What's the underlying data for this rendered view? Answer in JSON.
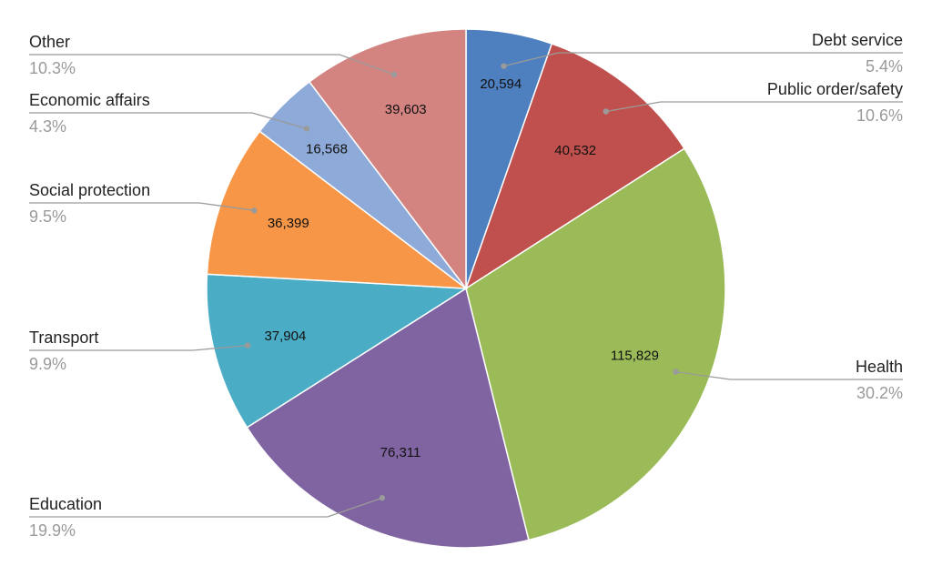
{
  "chart_data": {
    "type": "pie",
    "title": "",
    "legend": "none",
    "slices": [
      {
        "label": "Debt service",
        "value": 20594,
        "value_label": "20,594",
        "percent_label": "5.4%",
        "color": "#4e7fbf"
      },
      {
        "label": "Public order/safety",
        "value": 40532,
        "value_label": "40,532",
        "percent_label": "10.6%",
        "color": "#c0504d"
      },
      {
        "label": "Health",
        "value": 115829,
        "value_label": "115,829",
        "percent_label": "30.2%",
        "color": "#9bbb59"
      },
      {
        "label": "Education",
        "value": 76311,
        "value_label": "76,311",
        "percent_label": "19.9%",
        "color": "#8064a2"
      },
      {
        "label": "Transport",
        "value": 37904,
        "value_label": "37,904",
        "percent_label": "9.9%",
        "color": "#4bacc6"
      },
      {
        "label": "Social protection",
        "value": 36399,
        "value_label": "36,399",
        "percent_label": "9.5%",
        "color": "#f79646"
      },
      {
        "label": "Economic affairs",
        "value": 16568,
        "value_label": "16,568",
        "percent_label": "4.3%",
        "color": "#8eaad8"
      },
      {
        "label": "Other",
        "value": 39603,
        "value_label": "39,603",
        "percent_label": "10.3%",
        "color": "#d48480"
      }
    ]
  }
}
